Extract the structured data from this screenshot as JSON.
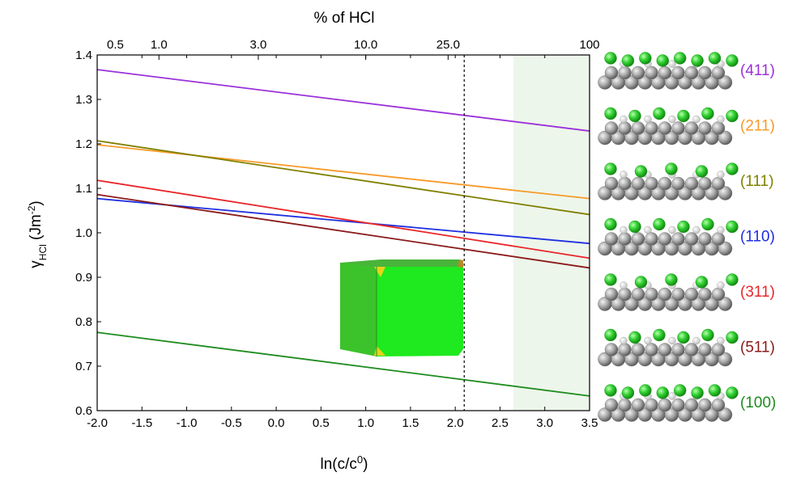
{
  "chart_data": {
    "type": "line",
    "title": "",
    "xlabel": "ln(c/c⁰)",
    "ylabel_main": "γ",
    "ylabel_sub": "HCl",
    "ylabel_unit_open": " (Jm",
    "ylabel_unit_exp": "-2",
    "ylabel_unit_close": ")",
    "xlim": [
      -2.0,
      3.5
    ],
    "ylim": [
      0.6,
      1.4
    ],
    "xticks": [
      -2.0,
      -1.5,
      -1.0,
      -0.5,
      0.0,
      0.5,
      1.0,
      1.5,
      2.0,
      2.5,
      3.0,
      3.5
    ],
    "xtick_labels": [
      "-2.0",
      "-1.5",
      "-1.0",
      "-0.5",
      "0.0",
      "0.5",
      "1.0",
      "1.5",
      "2.0",
      "2.5",
      "3.0",
      "3.5"
    ],
    "yticks": [
      0.6,
      0.7,
      0.8,
      0.9,
      1.0,
      1.1,
      1.2,
      1.3,
      1.4
    ],
    "ytick_labels": [
      "0.6",
      "0.7",
      "0.8",
      "0.9",
      "1.0",
      "1.1",
      "1.2",
      "1.3",
      "1.4"
    ],
    "top_axis": {
      "label": "% of HCl",
      "ticks": [
        {
          "label": "0.5",
          "x": -2.0
        },
        {
          "label": "1.0",
          "x": -1.31
        },
        {
          "label": "3.0",
          "x": -0.2
        },
        {
          "label": "10.0",
          "x": 1.0
        },
        {
          "label": "25.0",
          "x": 1.92
        },
        {
          "label": "100",
          "x": 3.5
        }
      ]
    },
    "vline_x": 2.1,
    "shaded_region": [
      2.65,
      3.5
    ],
    "series": [
      {
        "name": "(411)",
        "color": "#9b30d9",
        "x": [
          -2.0,
          3.5
        ],
        "y": [
          1.367,
          1.229
        ]
      },
      {
        "name": "(211)",
        "color": "#f79a28",
        "x": [
          -2.0,
          3.5
        ],
        "y": [
          1.198,
          1.077
        ]
      },
      {
        "name": "(111)",
        "color": "#808000",
        "x": [
          -2.0,
          3.5
        ],
        "y": [
          1.207,
          1.041
        ]
      },
      {
        "name": "(110)",
        "color": "#1f2fe0",
        "x": [
          -2.0,
          3.5
        ],
        "y": [
          1.077,
          0.976
        ]
      },
      {
        "name": "(311)",
        "color": "#e8262a",
        "x": [
          -2.0,
          3.5
        ],
        "y": [
          1.118,
          0.943
        ]
      },
      {
        "name": "(511)",
        "color": "#8b1a1a",
        "x": [
          -2.0,
          3.5
        ],
        "y": [
          1.086,
          0.921
        ]
      },
      {
        "name": "(100)",
        "color": "#1e8c1e",
        "x": [
          -2.0,
          3.5
        ],
        "y": [
          0.776,
          0.633
        ]
      }
    ]
  },
  "facet_panels": [
    {
      "label": "(411)",
      "color": "#9b30d9"
    },
    {
      "label": "(211)",
      "color": "#f79a28"
    },
    {
      "label": "(111)",
      "color": "#808000"
    },
    {
      "label": "(110)",
      "color": "#1f2fe0"
    },
    {
      "label": "(311)",
      "color": "#e8262a"
    },
    {
      "label": "(511)",
      "color": "#8b1a1a"
    },
    {
      "label": "(100)",
      "color": "#1e8c1e"
    }
  ]
}
